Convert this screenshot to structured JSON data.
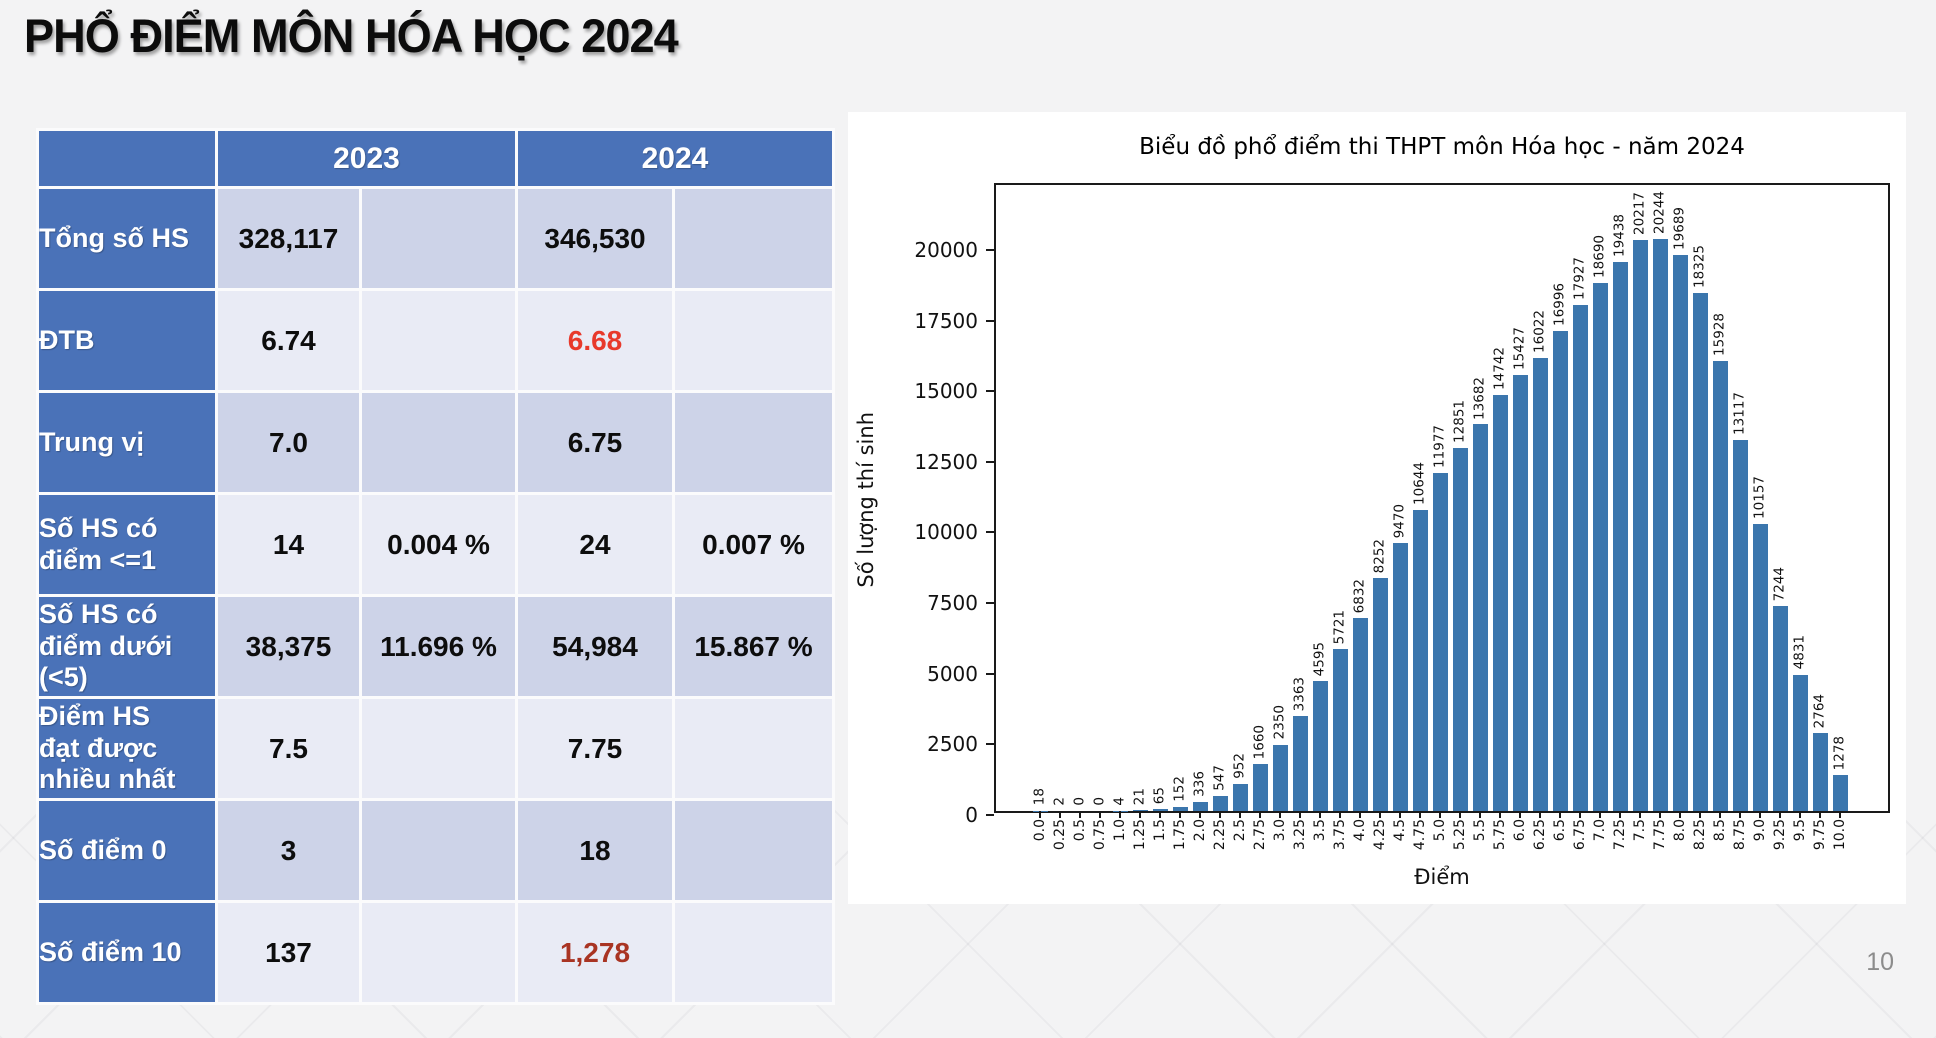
{
  "slide": {
    "title": "PHỔ ĐIỂM MÔN HÓA HỌC 2024",
    "page_number": "10"
  },
  "colors": {
    "table_accent_blue": "#4a72b8",
    "band_dark": "#cdd3e8",
    "band_light": "#e9ebf5",
    "highlight_red": "#e8392b",
    "highlight_dark_red": "#a93423",
    "bar_blue": "#3b76ad"
  },
  "table": {
    "year_headers": [
      "2023",
      "2024"
    ],
    "rows": [
      {
        "label": "Tổng số HS",
        "v2023": "328,117",
        "p2023": "",
        "v2024": "346,530",
        "p2024": "",
        "v2024_class": ""
      },
      {
        "label": "ĐTB",
        "v2023": "6.74",
        "p2023": "",
        "v2024": "6.68",
        "p2024": "",
        "v2024_class": "red"
      },
      {
        "label": "Trung vị",
        "v2023": "7.0",
        "p2023": "",
        "v2024": "6.75",
        "p2024": "",
        "v2024_class": ""
      },
      {
        "label": "Số HS có\nđiểm <=1",
        "v2023": "14",
        "p2023": "0.004 %",
        "v2024": "24",
        "p2024": "0.007 %",
        "v2024_class": ""
      },
      {
        "label": "Số HS có\nđiểm dưới\n(<5)",
        "v2023": "38,375",
        "p2023": "11.696 %",
        "v2024": "54,984",
        "p2024": "15.867 %",
        "v2024_class": ""
      },
      {
        "label": "Điểm HS\nđạt được\nnhiều nhất",
        "v2023": "7.5",
        "p2023": "",
        "v2024": "7.75",
        "p2024": "",
        "v2024_class": ""
      },
      {
        "label": "Số điểm 0",
        "v2023": "3",
        "p2023": "",
        "v2024": "18",
        "p2024": "",
        "v2024_class": ""
      },
      {
        "label": "Số điểm 10",
        "v2023": "137",
        "p2023": "",
        "v2024": "1,278",
        "p2024": "",
        "v2024_class": "darkred"
      }
    ]
  },
  "chart_data": {
    "type": "bar",
    "title": "Biểu đồ phổ điểm thi THPT môn Hóa học - năm 2024",
    "xlabel": "Điểm",
    "ylabel": "Số lượng thí sinh",
    "categories": [
      "0.0",
      "0.25",
      "0.5",
      "0.75",
      "1.0",
      "1.25",
      "1.5",
      "1.75",
      "2.0",
      "2.25",
      "2.5",
      "2.75",
      "3.0",
      "3.25",
      "3.5",
      "3.75",
      "4.0",
      "4.25",
      "4.5",
      "4.75",
      "5.0",
      "5.25",
      "5.5",
      "5.75",
      "6.0",
      "6.25",
      "6.5",
      "6.75",
      "7.0",
      "7.25",
      "7.5",
      "7.75",
      "8.0",
      "8.25",
      "8.5",
      "8.75",
      "9.0",
      "9.25",
      "9.5",
      "9.75",
      "10.0"
    ],
    "values": [
      18,
      2,
      0,
      0,
      4,
      21,
      65,
      152,
      336,
      547,
      952,
      1660,
      2350,
      3363,
      4595,
      5721,
      6832,
      8252,
      9470,
      10644,
      11977,
      12851,
      13682,
      14742,
      15427,
      16022,
      16996,
      17927,
      18690,
      19438,
      20217,
      20244,
      19689,
      18325,
      15928,
      13117,
      10157,
      7244,
      4831,
      2764,
      1278
    ],
    "yticks": [
      0,
      2500,
      5000,
      7500,
      10000,
      12500,
      15000,
      17500,
      20000
    ],
    "ylim": [
      0,
      22300
    ],
    "grid": false,
    "legend": "none",
    "bar_color": "#3b76ad"
  }
}
